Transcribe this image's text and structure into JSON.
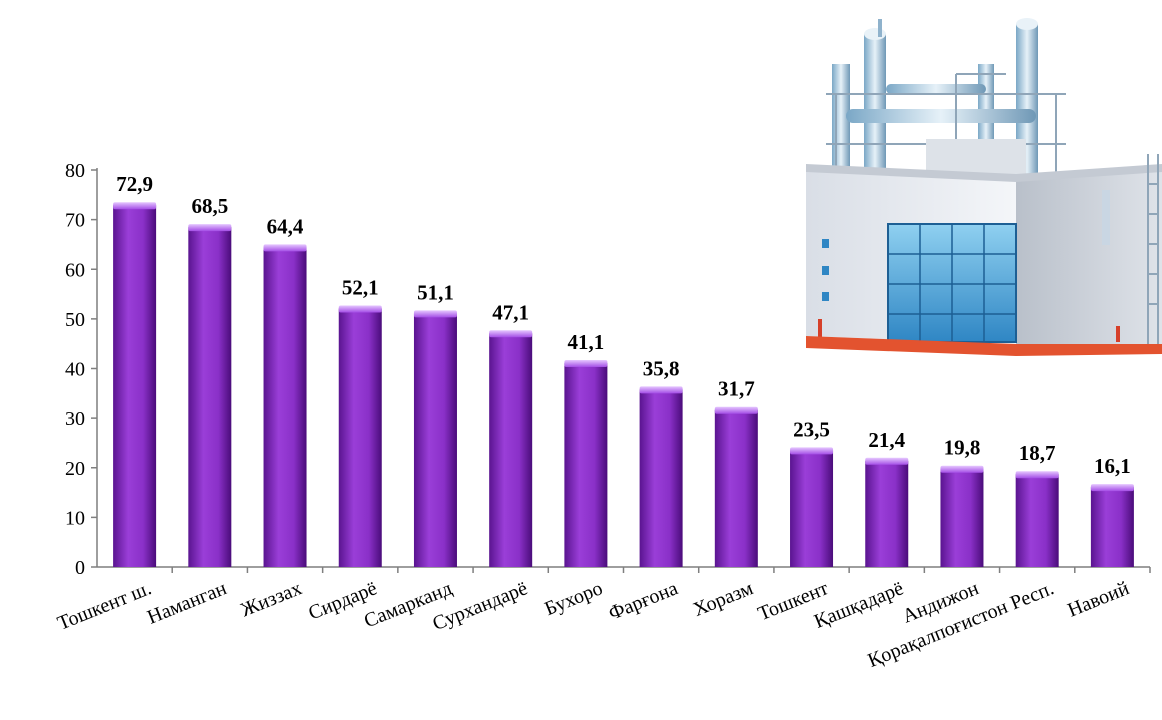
{
  "chart_data": {
    "type": "bar",
    "categories": [
      "Тошкент ш.",
      "Наманган",
      "Жиззах",
      "Сирдарё",
      "Самарканд",
      "Сурхандарё",
      "Бухоро",
      "Фарғона",
      "Хоразм",
      "Тошкент",
      "Қашқадарё",
      "Андижон",
      "Қорақалпоғистон Респ.",
      "Навоий"
    ],
    "values": [
      72.9,
      68.5,
      64.4,
      52.1,
      51.1,
      47.1,
      41.1,
      35.8,
      31.7,
      23.5,
      21.4,
      19.8,
      18.7,
      16.1
    ],
    "data_labels": [
      "72,9",
      "68,5",
      "64,4",
      "52,1",
      "51,1",
      "47,1",
      "41,1",
      "35,8",
      "31,7",
      "23,5",
      "21,4",
      "19,8",
      "18,7",
      "16,1"
    ],
    "y_ticks": [
      "0",
      "10",
      "20",
      "30",
      "40",
      "50",
      "60",
      "70",
      "80"
    ],
    "ylim": [
      0,
      80
    ],
    "grid": false,
    "legend": "none",
    "bar_color": "#8a30c8",
    "title": "",
    "xlabel": "",
    "ylabel": ""
  },
  "illustration": {
    "icon": "factory-building-icon"
  }
}
